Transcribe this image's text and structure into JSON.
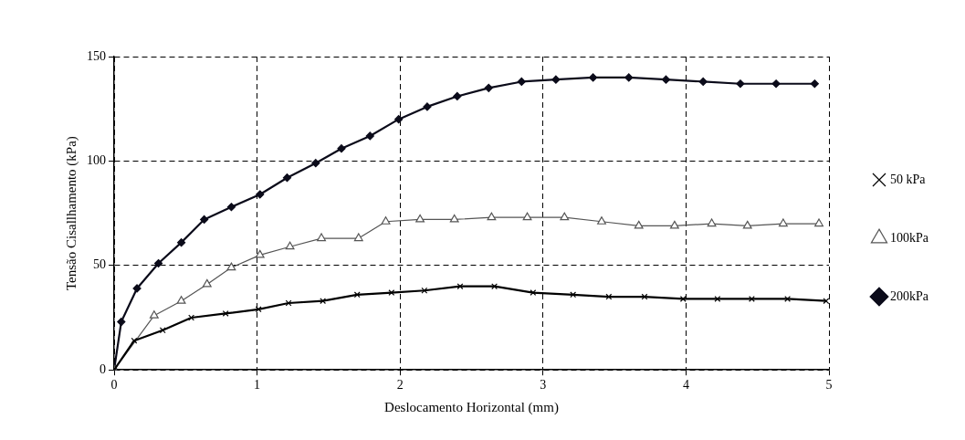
{
  "chart_data": {
    "type": "line",
    "xlabel": "Deslocamento Horizontal (mm)",
    "ylabel": "Tensão Cisallhamento (kPa)",
    "xlim": [
      0,
      5
    ],
    "xticks": [
      0,
      1,
      2,
      3,
      4,
      5
    ],
    "ylim": [
      0,
      150
    ],
    "yticks": [
      0,
      50,
      100,
      150
    ],
    "grid": true,
    "legend": "right",
    "line_style": "solid",
    "series": [
      {
        "name": "50 kPa",
        "color": "#000000",
        "marker": "cross",
        "x": [
          0,
          0.14,
          0.34,
          0.54,
          0.78,
          1.01,
          1.22,
          1.46,
          1.7,
          1.94,
          2.17,
          2.42,
          2.66,
          2.93,
          3.21,
          3.46,
          3.71,
          3.98,
          4.22,
          4.46,
          4.71,
          4.98
        ],
        "values": [
          0,
          14,
          19,
          25,
          27,
          29,
          32,
          33,
          36,
          37,
          38,
          40,
          40,
          37,
          36,
          35,
          35,
          34,
          34,
          34,
          34,
          33
        ]
      },
      {
        "name": "100kPa",
        "color": "#555555",
        "marker": "triangle",
        "x": [
          0,
          0.28,
          0.47,
          0.65,
          0.82,
          1.02,
          1.23,
          1.45,
          1.71,
          1.9,
          2.14,
          2.38,
          2.64,
          2.89,
          3.15,
          3.41,
          3.67,
          3.92,
          4.18,
          4.43,
          4.68,
          4.93
        ],
        "values": [
          0,
          26,
          33,
          41,
          49,
          55,
          59,
          63,
          63,
          71,
          72,
          72,
          73,
          73,
          73,
          71,
          69,
          69,
          70,
          69,
          70,
          70
        ]
      },
      {
        "name": "200kPa",
        "color": "#0b0b1a",
        "marker": "diamond",
        "x": [
          0,
          0.05,
          0.16,
          0.31,
          0.47,
          0.63,
          0.82,
          1.02,
          1.21,
          1.41,
          1.59,
          1.79,
          1.99,
          2.19,
          2.4,
          2.62,
          2.85,
          3.09,
          3.35,
          3.6,
          3.86,
          4.12,
          4.38,
          4.63,
          4.9
        ],
        "values": [
          0,
          23,
          39,
          51,
          61,
          72,
          78,
          84,
          92,
          99,
          106,
          112,
          120,
          126,
          131,
          135,
          138,
          139,
          140,
          140,
          139,
          138,
          137,
          137,
          137
        ]
      }
    ]
  }
}
